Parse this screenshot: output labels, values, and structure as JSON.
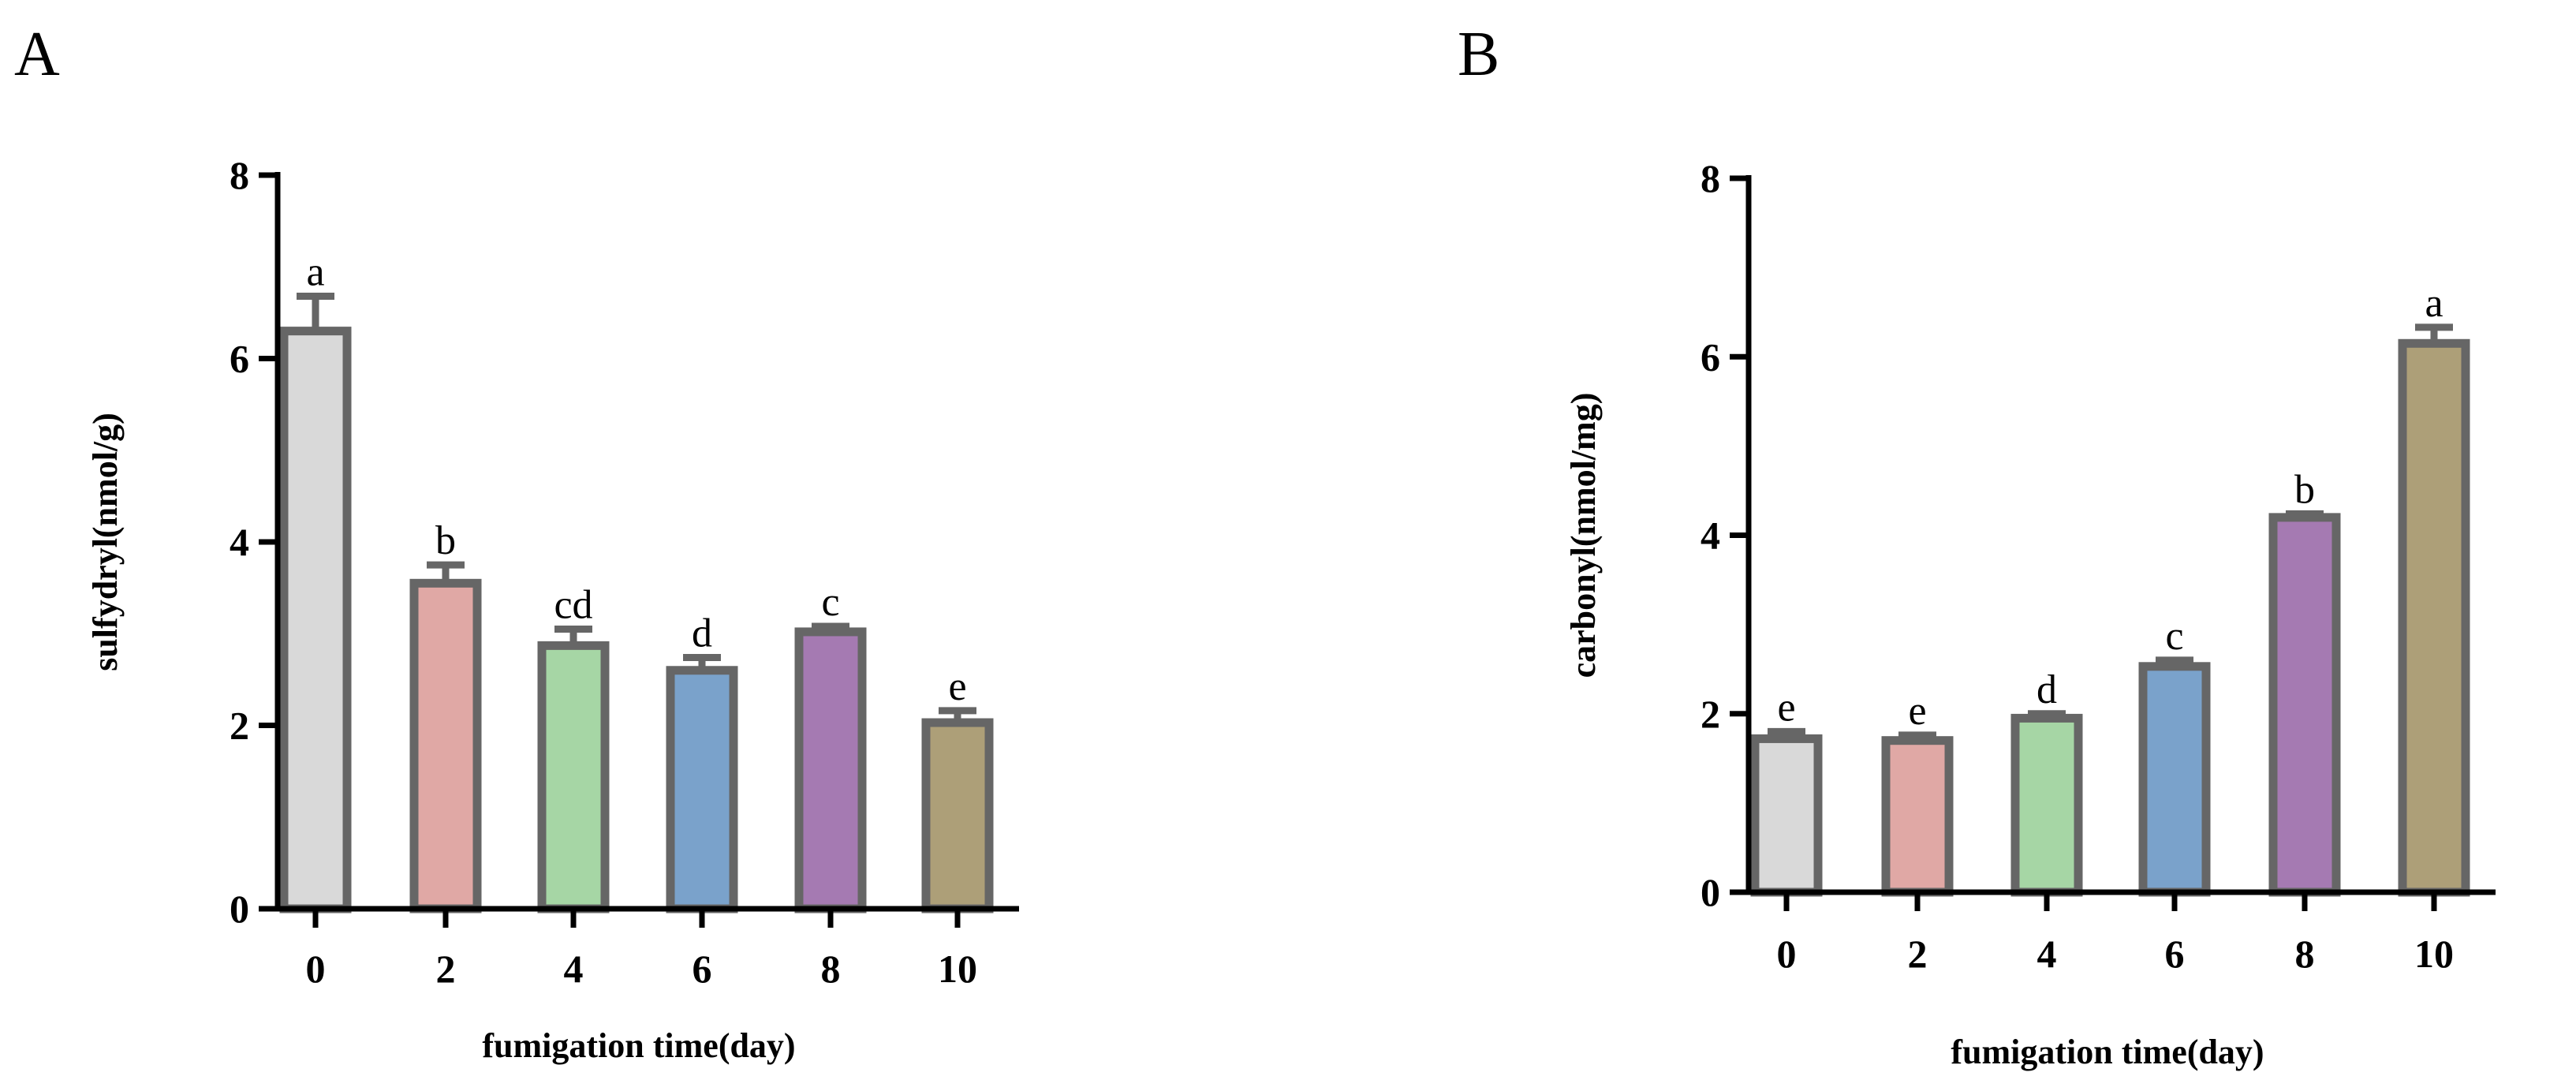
{
  "chart_data": [
    {
      "type": "bar",
      "panel_label": "A",
      "categories": [
        "0",
        "2",
        "4",
        "6",
        "8",
        "10"
      ],
      "values": [
        6.3,
        3.55,
        2.87,
        2.6,
        3.02,
        2.03
      ],
      "errors": [
        0.38,
        0.2,
        0.18,
        0.14,
        0.06,
        0.13
      ],
      "significance": [
        "a",
        "b",
        "cd",
        "d",
        "c",
        "e"
      ],
      "bar_colors": [
        "#d9d9d9",
        "#e0a8a5",
        "#a6d6a5",
        "#7aa2cb",
        "#a57ab2",
        "#ad9f78"
      ],
      "xlabel": "fumigation time(day)",
      "ylabel": "sulfydryl(nmol/g)",
      "ylim": [
        0,
        8
      ],
      "yticks": [
        0,
        2,
        4,
        6,
        8
      ],
      "grid": false
    },
    {
      "type": "bar",
      "panel_label": "B",
      "categories": [
        "0",
        "2",
        "4",
        "6",
        "8",
        "10"
      ],
      "values": [
        1.72,
        1.7,
        1.95,
        2.53,
        4.2,
        6.15
      ],
      "errors": [
        0.08,
        0.06,
        0.05,
        0.07,
        0.04,
        0.18
      ],
      "significance": [
        "e",
        "e",
        "d",
        "c",
        "b",
        "a"
      ],
      "bar_colors": [
        "#d9d9d9",
        "#e0a8a5",
        "#a6d6a5",
        "#7aa2cb",
        "#a57ab2",
        "#ad9f78"
      ],
      "xlabel": "fumigation time(day)",
      "ylabel": "carbonyl(nmol/mg)",
      "ylim": [
        0,
        8
      ],
      "yticks": [
        0,
        2,
        4,
        6,
        8
      ],
      "grid": false
    }
  ],
  "style": {
    "axis_color": "#000000",
    "bar_edge_color": "#666666",
    "text_color": "#000000"
  }
}
